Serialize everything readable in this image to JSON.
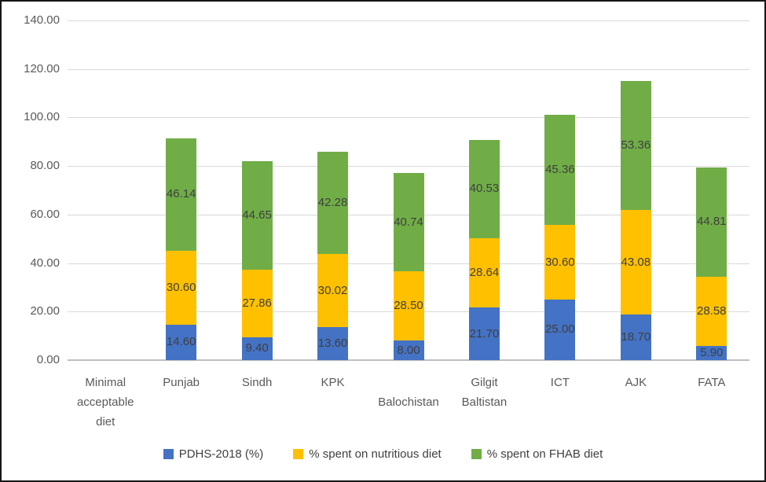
{
  "chart_data": {
    "type": "bar",
    "stacked": true,
    "title": "",
    "xlabel": "",
    "ylabel": "",
    "categories": [
      "Minimal acceptable diet",
      "Punjab",
      "Sindh",
      "KPK",
      "Balochistan",
      "Gilgit Baltistan",
      "ICT",
      "AJK",
      "FATA"
    ],
    "category_label_layout": [
      {
        "lines": [
          "Minimal",
          "acceptable",
          "diet"
        ],
        "start_row": 0
      },
      {
        "lines": [
          "Punjab"
        ],
        "start_row": 0
      },
      {
        "lines": [
          "Sindh"
        ],
        "start_row": 0
      },
      {
        "lines": [
          "KPK"
        ],
        "start_row": 0
      },
      {
        "lines": [
          "Balochistan"
        ],
        "start_row": 1
      },
      {
        "lines": [
          "Gilgit",
          "Baltistan"
        ],
        "start_row": 0
      },
      {
        "lines": [
          "ICT"
        ],
        "start_row": 0
      },
      {
        "lines": [
          "AJK"
        ],
        "start_row": 0
      },
      {
        "lines": [
          "FATA"
        ],
        "start_row": 0
      }
    ],
    "series": [
      {
        "name": "PDHS-2018 (%)",
        "color": "#4472C4",
        "values": [
          null,
          14.6,
          9.4,
          13.6,
          8.0,
          21.7,
          25.0,
          18.7,
          5.9
        ]
      },
      {
        "name": "% spent on nutritious diet",
        "color": "#FFC000",
        "values": [
          null,
          30.6,
          27.86,
          30.02,
          28.5,
          28.64,
          30.6,
          43.08,
          28.58
        ]
      },
      {
        "name": "% spent on FHAB diet",
        "color": "#70AD47",
        "values": [
          null,
          46.14,
          44.65,
          42.28,
          40.74,
          40.53,
          45.36,
          53.36,
          44.81
        ]
      }
    ],
    "data_labels_shown": true,
    "y_axis": {
      "min": 0,
      "max": 140,
      "step": 20,
      "tick_labels": [
        "0.00",
        "20.00",
        "40.00",
        "60.00",
        "80.00",
        "100.00",
        "120.00",
        "140.00"
      ]
    },
    "grid": true,
    "legend_position": "bottom",
    "colors": {
      "grid": "#D9D9D9",
      "axis_line": "#BFBFBF",
      "tick_label": "#595959",
      "data_label": "#3F3F3F",
      "border": "#161616",
      "background": "#FFFFFF"
    }
  }
}
